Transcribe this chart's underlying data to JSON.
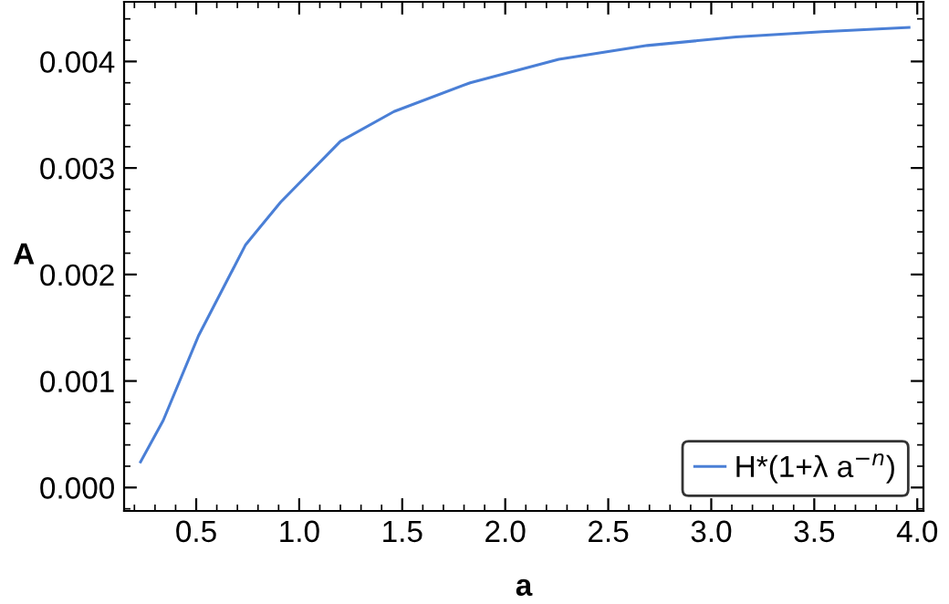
{
  "chart_data": {
    "type": "line",
    "xlabel": "a",
    "ylabel": "A",
    "series": [
      {
        "name": "H*(1+λ a$^{−n}$)",
        "color": "#4a7fd6",
        "x": [
          0.23,
          0.34,
          0.51,
          0.74,
          0.91,
          1.2,
          1.46,
          1.83,
          2.26,
          2.69,
          3.12,
          3.54,
          3.96
        ],
        "values": [
          0.00024,
          0.00063,
          0.00142,
          0.00228,
          0.00268,
          0.00325,
          0.00353,
          0.0038,
          0.00402,
          0.00415,
          0.00423,
          0.00428,
          0.00432
        ]
      }
    ],
    "xlim": [
      0.15,
      4.03
    ],
    "ylim": [
      -0.00022,
      0.00456
    ],
    "xticks": [
      {
        "value": 0.5,
        "label": "0.5"
      },
      {
        "value": 1.0,
        "label": "1.0"
      },
      {
        "value": 1.5,
        "label": "1.5"
      },
      {
        "value": 2.0,
        "label": "2.0"
      },
      {
        "value": 2.5,
        "label": "2.5"
      },
      {
        "value": 3.0,
        "label": "3.0"
      },
      {
        "value": 3.5,
        "label": "3.5"
      },
      {
        "value": 4.0,
        "label": "4.0"
      }
    ],
    "yticks": [
      {
        "value": 0.0,
        "label": "0.000"
      },
      {
        "value": 0.001,
        "label": "0.001"
      },
      {
        "value": 0.002,
        "label": "0.002"
      },
      {
        "value": 0.003,
        "label": "0.003"
      },
      {
        "value": 0.004,
        "label": "0.004"
      }
    ],
    "legend": "bottom right",
    "grid": false,
    "marker": "none",
    "line_style": "solid"
  }
}
